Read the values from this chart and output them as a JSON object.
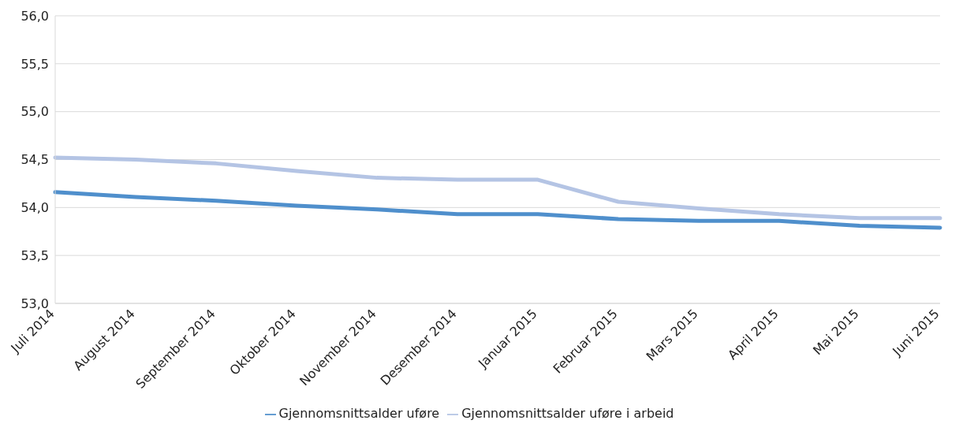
{
  "chart_data": {
    "type": "line",
    "categories": [
      "Juli 2014",
      "August 2014",
      "September 2014",
      "Oktober 2014",
      "November 2014",
      "Desember 2014",
      "Januar 2015",
      "Februar 2015",
      "Mars 2015",
      "April 2015",
      "Mai 2015",
      "Juni 2015"
    ],
    "series": [
      {
        "name": "Gjennomsnittsalder uføre",
        "color": "#4f8fcc",
        "values": [
          54.16,
          54.11,
          54.07,
          54.02,
          53.98,
          53.93,
          53.93,
          53.88,
          53.86,
          53.86,
          53.81,
          53.79
        ]
      },
      {
        "name": "Gjennomsnittsalder uføre i arbeid",
        "color": "#b4c4e4",
        "values": [
          54.52,
          54.5,
          54.46,
          54.38,
          54.31,
          54.29,
          54.29,
          54.06,
          53.99,
          53.93,
          53.89,
          53.89
        ]
      }
    ],
    "ylim": [
      53,
      56
    ],
    "yticks": [
      {
        "value": 53,
        "label": "53,0"
      },
      {
        "value": 53.5,
        "label": "53,5"
      },
      {
        "value": 54,
        "label": "54,0"
      },
      {
        "value": 54.5,
        "label": "54,5"
      },
      {
        "value": 55,
        "label": "55,0"
      },
      {
        "value": 55.5,
        "label": "55,5"
      },
      {
        "value": 56,
        "label": "56,0"
      }
    ],
    "grid": "y",
    "legend": "bottom",
    "marker": "none",
    "line_style": "solid"
  }
}
